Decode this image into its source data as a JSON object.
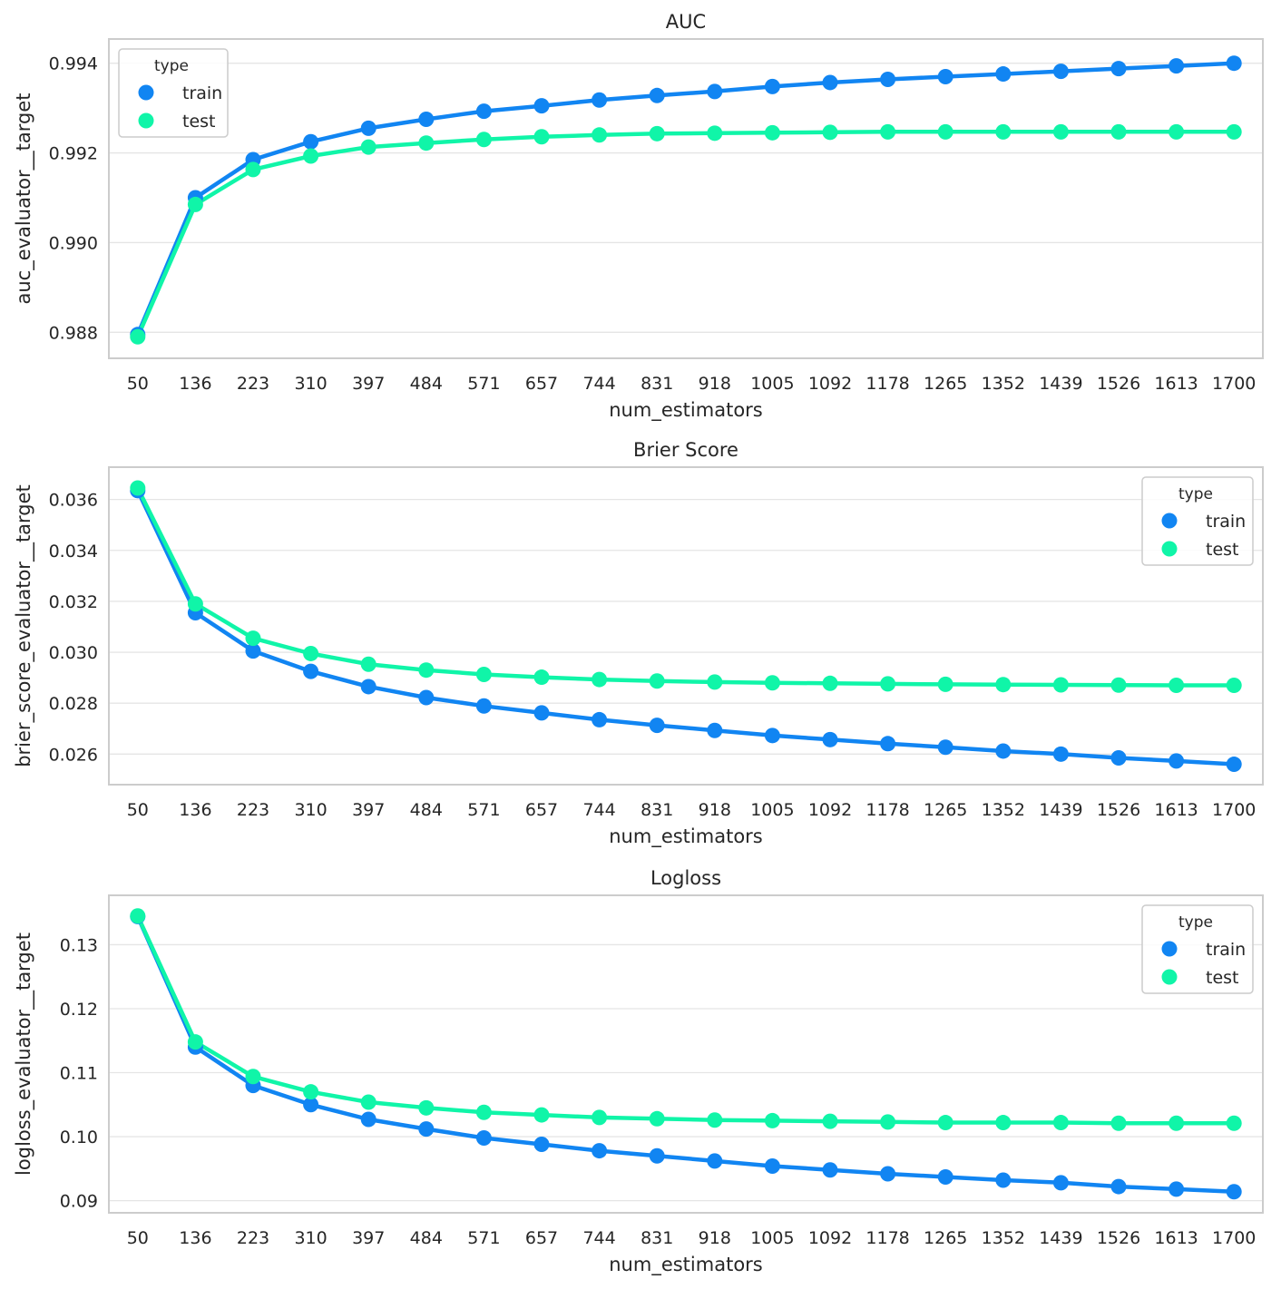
{
  "chart_data": [
    {
      "type": "line",
      "title": "AUC",
      "xlabel": "num_estimators",
      "ylabel": "auc_evaluator__target",
      "categories": [
        "50",
        "136",
        "223",
        "310",
        "397",
        "484",
        "571",
        "657",
        "744",
        "831",
        "918",
        "1005",
        "1092",
        "1178",
        "1265",
        "1352",
        "1439",
        "1526",
        "1613",
        "1700"
      ],
      "ylim": [
        0.98742,
        0.99454
      ],
      "yticks": [
        0.988,
        0.99,
        0.992,
        0.994
      ],
      "ytick_labels": [
        "0.988",
        "0.990",
        "0.992",
        "0.994"
      ],
      "grid": "horizontal",
      "legend": {
        "title": "type",
        "placement": "top-left"
      },
      "series": [
        {
          "name": "train",
          "color": "#1185f2",
          "values": [
            0.98795,
            0.991,
            0.99185,
            0.99225,
            0.99255,
            0.99275,
            0.99293,
            0.99305,
            0.99318,
            0.99328,
            0.99337,
            0.99348,
            0.99357,
            0.99364,
            0.9937,
            0.99376,
            0.99382,
            0.99388,
            0.99394,
            0.994
          ]
        },
        {
          "name": "test",
          "color": "#10f5a8",
          "values": [
            0.9879,
            0.99085,
            0.99163,
            0.99193,
            0.99213,
            0.99222,
            0.9923,
            0.99236,
            0.9924,
            0.99243,
            0.99244,
            0.99245,
            0.99246,
            0.99247,
            0.99247,
            0.99247,
            0.99247,
            0.99247,
            0.99247,
            0.99247
          ]
        }
      ]
    },
    {
      "type": "line",
      "title": "Brier Score",
      "xlabel": "num_estimators",
      "ylabel": "brier_score_evaluator__target",
      "categories": [
        "50",
        "136",
        "223",
        "310",
        "397",
        "484",
        "571",
        "657",
        "744",
        "831",
        "918",
        "1005",
        "1092",
        "1178",
        "1265",
        "1352",
        "1439",
        "1526",
        "1613",
        "1700"
      ],
      "ylim": [
        0.0248,
        0.03727
      ],
      "yticks": [
        0.026,
        0.028,
        0.03,
        0.032,
        0.034,
        0.036
      ],
      "ytick_labels": [
        "0.026",
        "0.028",
        "0.030",
        "0.032",
        "0.034",
        "0.036"
      ],
      "grid": "horizontal",
      "legend": {
        "title": "type",
        "placement": "top-right"
      },
      "series": [
        {
          "name": "train",
          "color": "#1185f2",
          "values": [
            0.03635,
            0.03155,
            0.03005,
            0.02925,
            0.02865,
            0.02822,
            0.02789,
            0.02762,
            0.02735,
            0.02713,
            0.02693,
            0.02673,
            0.02657,
            0.02641,
            0.02627,
            0.02612,
            0.026,
            0.02585,
            0.02573,
            0.0256
          ]
        },
        {
          "name": "test",
          "color": "#10f5a8",
          "values": [
            0.03645,
            0.0319,
            0.03055,
            0.02995,
            0.02953,
            0.0293,
            0.02913,
            0.02902,
            0.02893,
            0.02887,
            0.02883,
            0.0288,
            0.02878,
            0.02876,
            0.02874,
            0.02873,
            0.02872,
            0.02871,
            0.0287,
            0.0287
          ]
        }
      ]
    },
    {
      "type": "line",
      "title": "Logloss",
      "xlabel": "num_estimators",
      "ylabel": "logloss_evaluator__target",
      "categories": [
        "50",
        "136",
        "223",
        "310",
        "397",
        "484",
        "571",
        "657",
        "744",
        "831",
        "918",
        "1005",
        "1092",
        "1178",
        "1265",
        "1352",
        "1439",
        "1526",
        "1613",
        "1700"
      ],
      "ylim": [
        0.0881,
        0.13772
      ],
      "yticks": [
        0.09,
        0.1,
        0.11,
        0.12,
        0.13
      ],
      "ytick_labels": [
        "0.09",
        "0.10",
        "0.11",
        "0.12",
        "0.13"
      ],
      "grid": "horizontal",
      "legend": {
        "title": "type",
        "placement": "top-right"
      },
      "series": [
        {
          "name": "train",
          "color": "#1185f2",
          "values": [
            0.1344,
            0.114,
            0.108,
            0.105,
            0.1027,
            0.1012,
            0.0998,
            0.0988,
            0.0978,
            0.097,
            0.0962,
            0.0954,
            0.0948,
            0.0942,
            0.0937,
            0.0932,
            0.0928,
            0.0922,
            0.0918,
            0.0914
          ]
        },
        {
          "name": "test",
          "color": "#10f5a8",
          "values": [
            0.1345,
            0.1148,
            0.1094,
            0.107,
            0.1054,
            0.1045,
            0.1038,
            0.1034,
            0.103,
            0.1028,
            0.1026,
            0.1025,
            0.1024,
            0.1023,
            0.1022,
            0.1022,
            0.1022,
            0.1021,
            0.1021,
            0.1021
          ]
        }
      ]
    }
  ]
}
